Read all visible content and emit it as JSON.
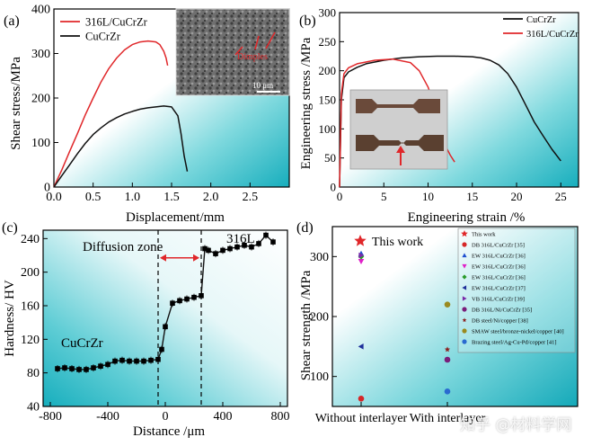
{
  "colors": {
    "red": "#e0272a",
    "black": "#111111",
    "panel_bg_teal": "#22b7c4",
    "star": "#e0272a"
  },
  "watermark": "知乎 @材料学网",
  "chart_data": [
    {
      "id": "a",
      "type": "line",
      "label": "(a)",
      "xlabel": "Displacement/mm",
      "ylabel": "Shear stress/MPa",
      "xlim": [
        0,
        3.0
      ],
      "ylim": [
        0,
        400
      ],
      "xticks": [
        0.0,
        0.5,
        1.0,
        1.5,
        2.0,
        2.5
      ],
      "xticklabels": [
        "0.0",
        "0.5",
        "1.0",
        "1.5",
        "2.0",
        "2.5"
      ],
      "yticks": [
        0,
        100,
        200,
        300,
        400
      ],
      "yticklabels": [
        "0",
        "100",
        "200",
        "300",
        "400"
      ],
      "series": [
        {
          "name": "316L/CuCrZr",
          "color": "red",
          "x": [
            0,
            0.1,
            0.2,
            0.3,
            0.4,
            0.5,
            0.6,
            0.7,
            0.8,
            0.9,
            1.0,
            1.1,
            1.2,
            1.3,
            1.35,
            1.4,
            1.43,
            1.45
          ],
          "y": [
            0,
            38,
            80,
            120,
            162,
            200,
            236,
            266,
            290,
            308,
            320,
            326,
            328,
            326,
            320,
            305,
            290,
            273
          ]
        },
        {
          "name": "CuCrZr",
          "color": "black",
          "x": [
            0,
            0.1,
            0.2,
            0.3,
            0.4,
            0.5,
            0.6,
            0.7,
            0.8,
            0.9,
            1.0,
            1.1,
            1.2,
            1.3,
            1.4,
            1.5,
            1.58,
            1.62,
            1.66,
            1.7
          ],
          "y": [
            0,
            25,
            50,
            75,
            98,
            118,
            133,
            146,
            156,
            164,
            170,
            175,
            178,
            180,
            182,
            180,
            160,
            120,
            70,
            35
          ]
        }
      ],
      "inset": {
        "scale_label": "10 μm",
        "annotation": "Dimples"
      }
    },
    {
      "id": "b",
      "type": "line",
      "label": "(b)",
      "xlabel": "Engineering  strain /%",
      "ylabel": "Engineering  stress /MPa",
      "xlim": [
        0,
        27
      ],
      "ylim": [
        0,
        300
      ],
      "xticks": [
        0,
        5,
        10,
        15,
        20,
        25
      ],
      "xticklabels": [
        "0",
        "5",
        "10",
        "15",
        "20",
        "25"
      ],
      "yticks": [
        0,
        50,
        100,
        150,
        200,
        250,
        300
      ],
      "yticklabels": [
        "0",
        "50",
        "100",
        "150",
        "200",
        "250",
        "300"
      ],
      "series": [
        {
          "name": "CuCrZr",
          "color": "black",
          "x": [
            0,
            0.2,
            0.5,
            1,
            2,
            3,
            5,
            7,
            9,
            11,
            13,
            15,
            16,
            17,
            18,
            19,
            20,
            21,
            22,
            23,
            24,
            25
          ],
          "y": [
            0,
            150,
            188,
            198,
            206,
            212,
            218,
            222,
            224,
            225,
            225,
            224,
            222,
            218,
            210,
            195,
            172,
            142,
            112,
            88,
            65,
            45
          ]
        },
        {
          "name": "316L/CuCrZr",
          "color": "red",
          "x": [
            0,
            0.2,
            0.5,
            1,
            2,
            4,
            6,
            8,
            9,
            10,
            10.5,
            11,
            11.5,
            12,
            12.5,
            13
          ],
          "y": [
            0,
            160,
            195,
            205,
            212,
            218,
            220,
            214,
            200,
            172,
            150,
            120,
            92,
            70,
            55,
            43
          ]
        }
      ],
      "inset": {
        "type": "photo"
      }
    },
    {
      "id": "c",
      "type": "line",
      "label": "(c)",
      "xlabel": "Distance /μm",
      "ylabel": "Hardness/ HV",
      "xlim": [
        -850,
        850
      ],
      "ylim": [
        40,
        250
      ],
      "xticks": [
        -800,
        -400,
        0,
        400,
        800
      ],
      "xticklabels": [
        "-800",
        "-400",
        "0",
        "400",
        "800"
      ],
      "yticks": [
        40,
        80,
        120,
        160,
        200,
        240
      ],
      "yticklabels": [
        "40",
        "80",
        "120",
        "160",
        "200",
        "240"
      ],
      "boundaries_x": [
        -50,
        250
      ],
      "annotations": {
        "diffusion": "Diffusion zone",
        "left_material": "CuCrZr",
        "right_material": "316L"
      },
      "series": [
        {
          "name": "Hardness",
          "color": "black",
          "x": [
            -750,
            -700,
            -650,
            -600,
            -550,
            -500,
            -450,
            -400,
            -350,
            -300,
            -250,
            -200,
            -150,
            -100,
            -50,
            -25,
            0,
            50,
            100,
            150,
            200,
            250,
            275,
            300,
            350,
            400,
            450,
            500,
            550,
            600,
            650,
            700,
            750
          ],
          "y": [
            85,
            86,
            85,
            84,
            84,
            86,
            88,
            90,
            94,
            95,
            94,
            94,
            94,
            95,
            96,
            108,
            135,
            163,
            166,
            168,
            170,
            172,
            228,
            226,
            222,
            226,
            228,
            230,
            232,
            230,
            234,
            244,
            236
          ]
        }
      ]
    },
    {
      "id": "d",
      "type": "scatter",
      "label": "(d)",
      "xlabel": "",
      "ylabel": "Shear strength /MPa",
      "ylim": [
        50,
        350
      ],
      "yticks": [
        100,
        200,
        300
      ],
      "yticklabels": [
        "100",
        "200",
        "300"
      ],
      "categories": [
        "Without interlayer",
        "With interlayer"
      ],
      "highlight": {
        "label": "This work",
        "color": "#e0272a"
      },
      "legend_title": "This work",
      "series": [
        {
          "name": "DB 316L/CuCrZr [35]",
          "marker": "circle",
          "color": "#d62728",
          "category": 0,
          "value": 63
        },
        {
          "name": "EW 316L/CuCrZr [36]",
          "marker": "triangle-up",
          "color": "#1f4fd0",
          "category": 0,
          "value": 305
        },
        {
          "name": "EW 316L/CuCrZr [36]",
          "marker": "triangle-down",
          "color": "#e020c8",
          "category": 0,
          "value": 292
        },
        {
          "name": "EW 316L/CuCrZr [36]",
          "marker": "diamond",
          "color": "#2a9a2a",
          "category": 0,
          "value": 300
        },
        {
          "name": "EW 316L/CuCrZr [37]",
          "marker": "triangle-left",
          "color": "#1f2f9a",
          "category": 0,
          "value": 150
        },
        {
          "name": "VB 316L/CuCrZr [39]",
          "marker": "triangle-right",
          "color": "#7a2aa8",
          "category": 0,
          "value": 302
        },
        {
          "name": "DB 316L/Ni/CuCrZr [35]",
          "marker": "circle",
          "color": "#7a1e7a",
          "category": 1,
          "value": 128
        },
        {
          "name": "DB steel/Ni/copper [38]",
          "marker": "star",
          "color": "#8a1e1e",
          "category": 1,
          "value": 145
        },
        {
          "name": "SMAW steel/bronze-nickel/copper [40]",
          "marker": "circle",
          "color": "#9a8a20",
          "category": 1,
          "value": 220
        },
        {
          "name": "Brazing steel/Ag-Cu-Pd/copper [41]",
          "marker": "circle",
          "color": "#2a6ad0",
          "category": 1,
          "value": 75
        }
      ]
    }
  ]
}
